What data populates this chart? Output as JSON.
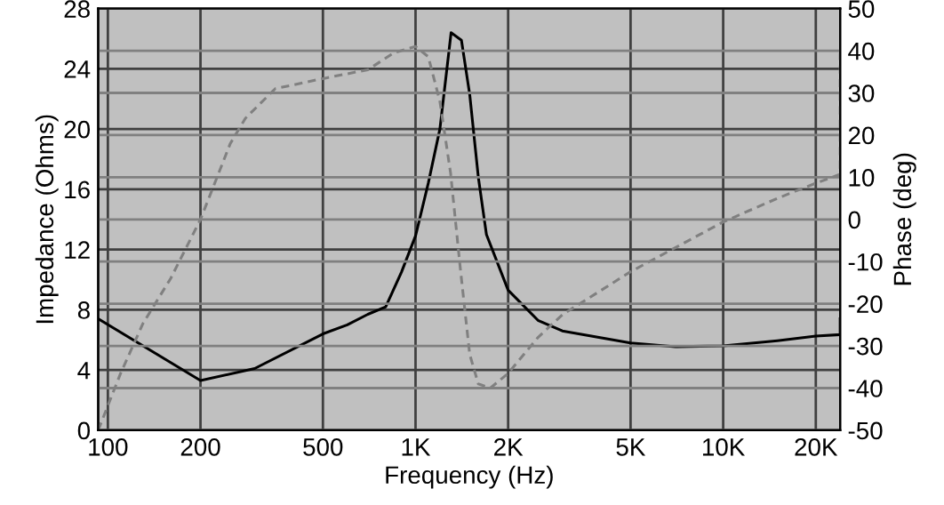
{
  "chart_data": {
    "type": "line",
    "xlabel": "Frequency (Hz)",
    "ylabel": "Impedance (Ohms)",
    "y2label": "Phase (deg)",
    "log": "x",
    "grid": true,
    "marker": "none",
    "xlim": [
      93,
      24000
    ],
    "xticks": [
      100,
      200,
      500,
      {
        "value": 1000,
        "label": "1K"
      },
      {
        "value": 2000,
        "label": "2K"
      },
      {
        "value": 5000,
        "label": "5K"
      },
      {
        "value": 10000,
        "label": "10K"
      },
      {
        "value": 20000,
        "label": "20K"
      }
    ],
    "ylim": [
      0,
      28
    ],
    "yticks": [
      0,
      4,
      8,
      12,
      16,
      20,
      24,
      28
    ],
    "y2lim": [
      -50,
      50
    ],
    "y2ticks": [
      -50,
      -40,
      -30,
      -20,
      -10,
      0,
      10,
      20,
      30,
      40,
      50
    ],
    "series": [
      {
        "color": "#000000",
        "line_style": "solid",
        "x": [
          93,
          200,
          300,
          500,
          600,
          700,
          800,
          900,
          1000,
          1100,
          1200,
          1305,
          1410,
          1500,
          1600,
          1700,
          2000,
          2500,
          3000,
          5000,
          7000,
          10000,
          15000,
          20000,
          24000,
          24000
        ],
        "values": [
          7.4,
          3.3,
          4.1,
          6.4,
          7.0,
          7.7,
          8.2,
          10.5,
          12.9,
          16.4,
          20,
          26.4,
          25.9,
          22.3,
          16.8,
          13,
          9.3,
          7.3,
          6.6,
          5.8,
          5.55,
          5.6,
          5.95,
          6.25,
          6.35,
          7.4
        ]
      },
      {
        "color": "#808080",
        "line_style": "dashed",
        "axis": "y2",
        "x": [
          93,
          110,
          130,
          160,
          200,
          250,
          280,
          350,
          500,
          700,
          850,
          1000,
          1100,
          1200,
          1300,
          1400,
          1500,
          1600,
          1750,
          2000,
          2500,
          3000,
          5000,
          10000,
          15000,
          20000,
          24000,
          24000
        ],
        "values": [
          -50,
          -36.5,
          -24.7,
          -14,
          0,
          18,
          24,
          31,
          33.4,
          35.5,
          39.5,
          41,
          38.6,
          28,
          11,
          -12,
          -32,
          -39,
          -40,
          -36.5,
          -28,
          -22.6,
          -12.4,
          -0.6,
          5,
          8.6,
          10.7,
          39.5
        ]
      }
    ]
  }
}
